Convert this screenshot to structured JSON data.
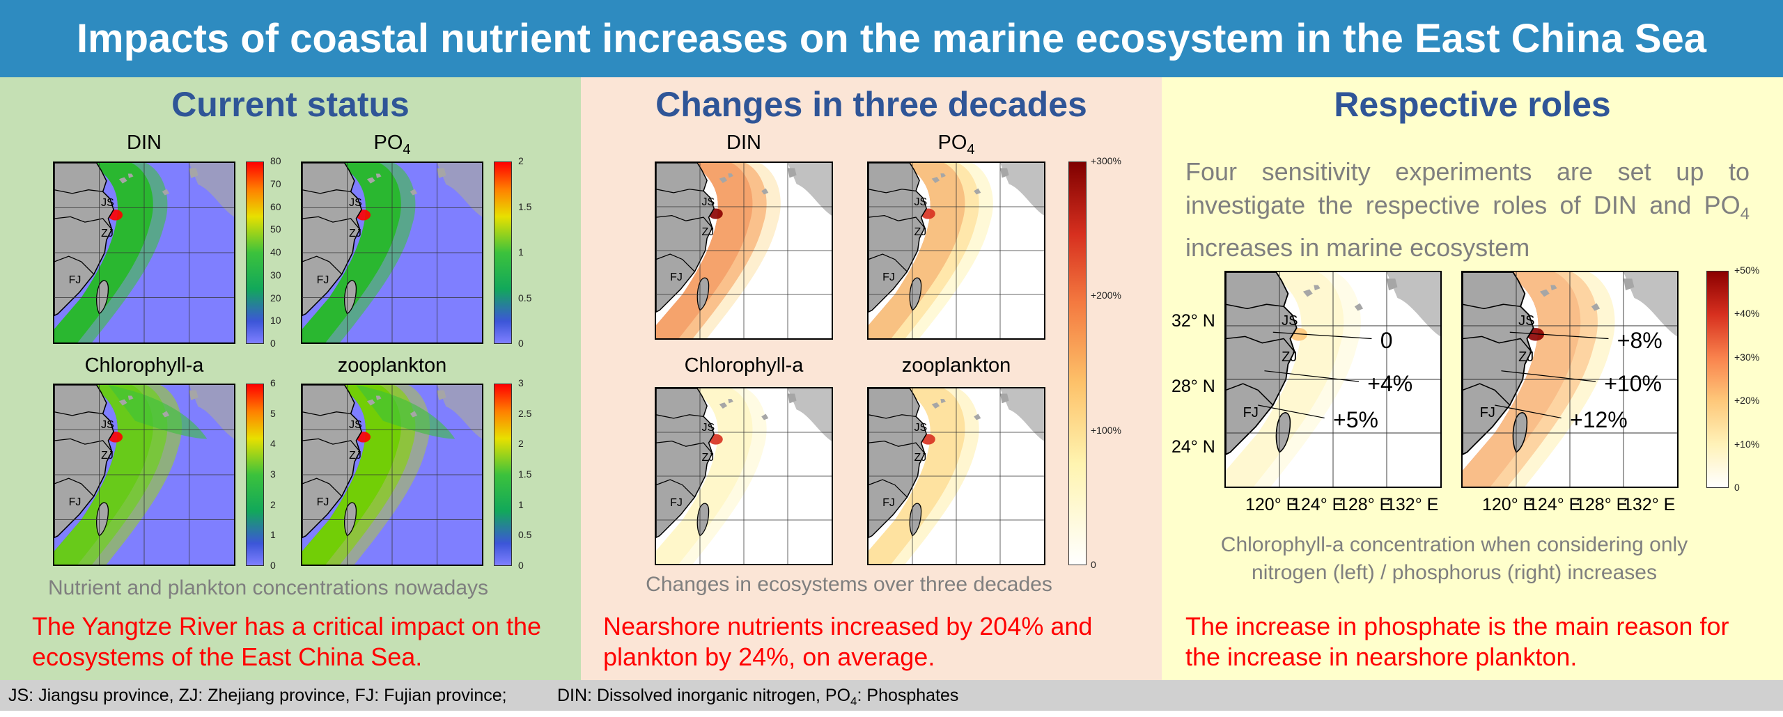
{
  "title": "Impacts of coastal nutrient increases on the marine ecosystem in the East China Sea",
  "panels": {
    "current": {
      "heading": "Current status",
      "maps": [
        "DIN",
        "PO",
        "Chlorophyll-a",
        "zooplankton"
      ],
      "po_sub": "4",
      "colorbars": {
        "din": [
          "80",
          "70",
          "60",
          "50",
          "40",
          "30",
          "20",
          "10",
          "0"
        ],
        "po4": [
          "2",
          "1.5",
          "1",
          "0.5",
          "0"
        ],
        "chl": [
          "6",
          "5",
          "4",
          "3",
          "2",
          "1",
          "0"
        ],
        "zoo": [
          "3",
          "2.5",
          "2",
          "1.5",
          "1",
          "0.5",
          "0"
        ]
      },
      "caption": "Nutrient and plankton concentrations nowadays",
      "conclusion": "The Yangtze River has a critical impact on the ecosystems of the East China Sea."
    },
    "changes": {
      "heading": "Changes in three decades",
      "maps": [
        "DIN",
        "PO",
        "Chlorophyll-a",
        "zooplankton"
      ],
      "po_sub": "4",
      "colorbar": [
        "+300%",
        "+200%",
        "+100%",
        "0"
      ],
      "caption": "Changes in ecosystems over three decades",
      "conclusion": "Nearshore nutrients increased by 204% and plankton by 24%, on average."
    },
    "roles": {
      "heading": "Respective roles",
      "intro_pre": "Four sensitivity experiments are set up to investigate the respective roles of DIN and PO",
      "intro_sub": "4",
      "intro_post": " increases in marine ecosystem",
      "lat_labels": [
        "32° N",
        "28° N",
        "24° N"
      ],
      "lon_labels": [
        "120° E",
        "124° E",
        "128° E",
        "132° E"
      ],
      "left_map_values": [
        "0",
        "+4%",
        "+5%"
      ],
      "right_map_values": [
        "+8%",
        "+10%",
        "+12%"
      ],
      "colorbar": [
        "+50%",
        "+40%",
        "+30%",
        "+20%",
        "+10%",
        "0"
      ],
      "caption_line1": "Chlorophyll-a concentration when considering only",
      "caption_line2": "nitrogen (left) / phosphorus (right) increases",
      "conclusion": "The increase in phosphate is the main reason for the increase in nearshore plankton."
    }
  },
  "region_labels": [
    "JS",
    "ZJ",
    "FJ"
  ],
  "footer": {
    "left": "JS: Jiangsu province, ZJ: Zhejiang province, FJ: Fujian province;",
    "right_pre": "DIN: Dissolved inorganic nitrogen, PO",
    "right_sub": "4",
    "right_post": ": Phosphates"
  },
  "colors": {
    "banner": "#2e8bc0",
    "panel_current": "#c5e0b4",
    "panel_changes": "#fbe5d6",
    "panel_roles": "#ffffcc",
    "heading": "#2f5597",
    "conclusion": "#ff0000",
    "caption": "#7f7f7f"
  }
}
